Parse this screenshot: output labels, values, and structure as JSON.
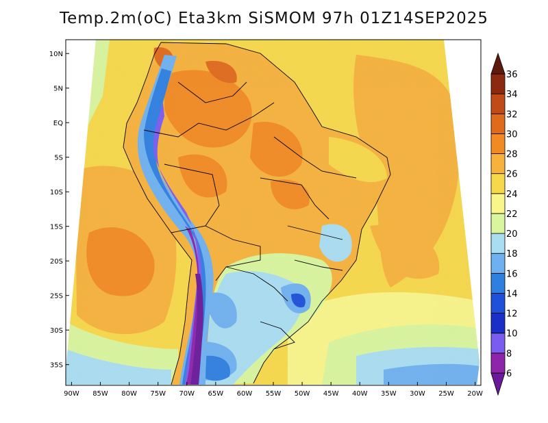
{
  "title": "Temp.2m(oC) Eta3km SiSMOM 97h 01Z14SEP2025",
  "map": {
    "lon_range": [
      -91,
      -19
    ],
    "lat_range": [
      -38,
      12
    ],
    "lat_labels": [
      "10N",
      "5N",
      "EQ",
      "5S",
      "10S",
      "15S",
      "20S",
      "25S",
      "30S",
      "35S"
    ],
    "lat_values": [
      10,
      5,
      0,
      -5,
      -10,
      -15,
      -20,
      -25,
      -30,
      -35
    ],
    "lon_labels": [
      "90W",
      "85W",
      "80W",
      "75W",
      "70W",
      "65W",
      "60W",
      "55W",
      "50W",
      "45W",
      "40W",
      "35W",
      "30W",
      "25W",
      "20W"
    ],
    "lon_values": [
      -90,
      -85,
      -80,
      -75,
      -70,
      -65,
      -60,
      -55,
      -50,
      -45,
      -40,
      -35,
      -30,
      -25,
      -20
    ]
  },
  "colorbar": {
    "labels": [
      "6",
      "8",
      "10",
      "12",
      "14",
      "16",
      "18",
      "20",
      "22",
      "24",
      "26",
      "28",
      "30",
      "32",
      "34",
      "36"
    ],
    "colors": [
      "#6a1b9a",
      "#8e24aa",
      "#7b5cf0",
      "#1a2ec8",
      "#1f50d9",
      "#2f7fe0",
      "#6fb1f0",
      "#a9ddf2",
      "#d9f59e",
      "#f8f58a",
      "#f7d84a",
      "#f6b23c",
      "#f28a23",
      "#e06a1c",
      "#c04a18",
      "#8b2a10",
      "#5e1a0c"
    ]
  }
}
